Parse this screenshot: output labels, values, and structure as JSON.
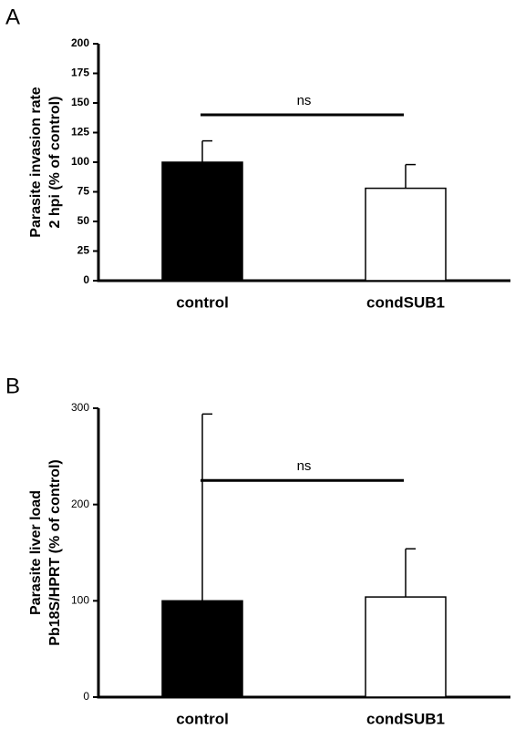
{
  "chart_data": [
    {
      "type": "bar",
      "panel": "A",
      "ylabel": [
        "Parasite invasion rate",
        "2 hpi (% of control)"
      ],
      "categories": [
        "control",
        "condSUB1"
      ],
      "values": [
        100,
        78
      ],
      "errors": [
        18,
        20
      ],
      "colors": [
        "#000000",
        "#ffffff"
      ],
      "annotation": "ns",
      "ylim": [
        0,
        200
      ],
      "yticks": [
        0,
        25,
        50,
        75,
        100,
        125,
        150,
        175,
        200
      ]
    },
    {
      "type": "bar",
      "panel": "B",
      "ylabel": [
        "Parasite liver load",
        "Pb18S/HPRT (% of control)"
      ],
      "categories": [
        "control",
        "condSUB1"
      ],
      "values": [
        100,
        104
      ],
      "errors": [
        194,
        50
      ],
      "colors": [
        "#000000",
        "#ffffff"
      ],
      "annotation": "ns",
      "ylim": [
        0,
        300
      ],
      "yticks": [
        0,
        100,
        200,
        300
      ]
    }
  ]
}
